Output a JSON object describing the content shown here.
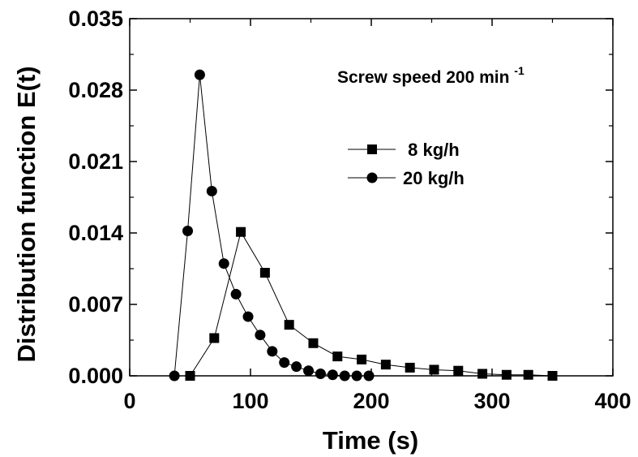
{
  "chart_data": {
    "type": "line",
    "title": "",
    "xlabel": "Time (s)",
    "ylabel": "Distribution function E(t)",
    "xlim": [
      0,
      400
    ],
    "ylim": [
      0,
      0.035
    ],
    "x_ticks": [
      "0",
      "100",
      "200",
      "300",
      "400"
    ],
    "y_ticks": [
      "0.000",
      "0.007",
      "0.014",
      "0.021",
      "0.028",
      "0.035"
    ],
    "grid": false,
    "legend_position": "upper-right",
    "annotation": {
      "text": "Screw speed 200 min",
      "superscript": "-1"
    },
    "series": [
      {
        "name": "8 kg/h",
        "marker": "square",
        "points": [
          [
            50,
            0.0
          ],
          [
            70,
            0.0037
          ],
          [
            92,
            0.0141
          ],
          [
            112,
            0.0101
          ],
          [
            132,
            0.005
          ],
          [
            152,
            0.0032
          ],
          [
            172,
            0.0019
          ],
          [
            192,
            0.0016
          ],
          [
            212,
            0.0011
          ],
          [
            232,
            0.0008
          ],
          [
            252,
            0.0006
          ],
          [
            272,
            0.0005
          ],
          [
            292,
            0.0002
          ],
          [
            312,
            0.0001
          ],
          [
            330,
            0.0001
          ],
          [
            350,
            0.0
          ]
        ]
      },
      {
        "name": "20 kg/h",
        "marker": "circle",
        "points": [
          [
            37,
            0.0
          ],
          [
            48,
            0.0142
          ],
          [
            58,
            0.0295
          ],
          [
            68,
            0.0181
          ],
          [
            78,
            0.011
          ],
          [
            88,
            0.008
          ],
          [
            98,
            0.0058
          ],
          [
            108,
            0.004
          ],
          [
            118,
            0.0024
          ],
          [
            128,
            0.0013
          ],
          [
            138,
            0.0009
          ],
          [
            148,
            0.0005
          ],
          [
            158,
            0.0002
          ],
          [
            168,
            0.0001
          ],
          [
            178,
            0.0
          ],
          [
            188,
            0.0
          ],
          [
            198,
            0.0
          ]
        ]
      }
    ]
  }
}
